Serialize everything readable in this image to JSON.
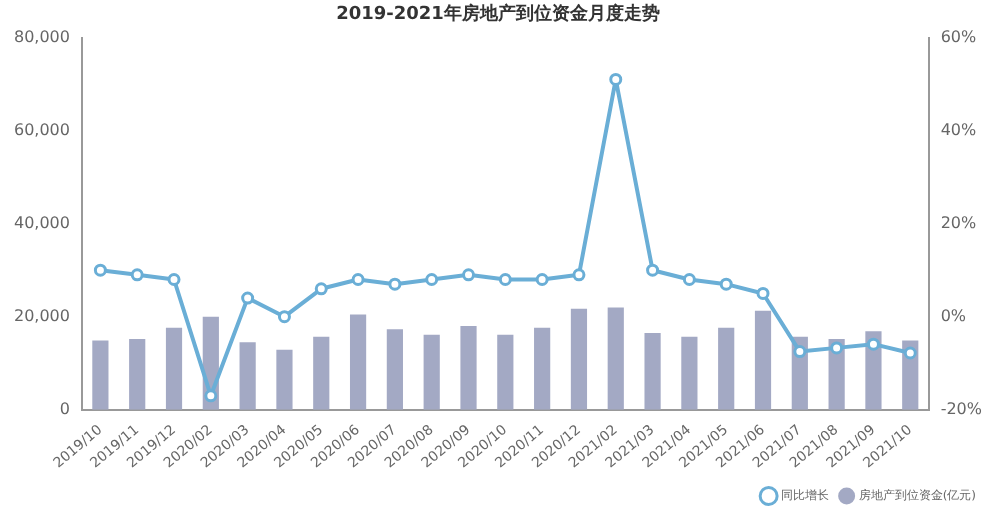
{
  "chart_data": {
    "type": "bar",
    "title": "2019-2021年房地产到位资金月度走势",
    "categories": [
      "2019/10",
      "2019/11",
      "2019/12",
      "2020/02",
      "2020/03",
      "2020/04",
      "2020/05",
      "2020/06",
      "2020/07",
      "2020/08",
      "2020/09",
      "2020/10",
      "2020/11",
      "2020/12",
      "2021/02",
      "2021/03",
      "2021/04",
      "2021/05",
      "2021/06",
      "2021/07",
      "2021/08",
      "2021/09",
      "2021/10"
    ],
    "series": [
      {
        "name": "同比增长",
        "type": "line",
        "axis": "y2",
        "color": "#6aaed6",
        "values": [
          10,
          9,
          8,
          -17,
          4,
          0,
          6,
          8,
          7,
          8,
          9,
          8,
          8,
          9,
          51,
          10,
          8,
          7,
          5,
          -7.5,
          -6.7,
          -5.9,
          -7.8
        ]
      },
      {
        "name": "房地产到位资金(亿元)",
        "color": "#a3a9c4",
        "values": [
          14900,
          15200,
          17600,
          20000,
          14500,
          12900,
          15700,
          20500,
          17300,
          16100,
          18000,
          16100,
          17600,
          21700,
          22000,
          16500,
          15700,
          17600,
          21300,
          15700,
          15200,
          16900,
          14900
        ]
      }
    ],
    "ylim": [
      0,
      80000
    ],
    "yticks": [
      {
        "value": 0,
        "label": "0"
      },
      {
        "value": 20000,
        "label": "20,000"
      },
      {
        "value": 40000,
        "label": "40,000"
      },
      {
        "value": 60000,
        "label": "60,000"
      },
      {
        "value": 80000,
        "label": "80,000"
      }
    ],
    "y2lim": [
      -20,
      60
    ],
    "y2ticks": [
      {
        "value": -20,
        "label": "-20%"
      },
      {
        "value": 0,
        "label": "0%"
      },
      {
        "value": 20,
        "label": "20%"
      },
      {
        "value": 40,
        "label": "40%"
      },
      {
        "value": 60,
        "label": "60%"
      }
    ],
    "grid": false,
    "legend": "bottom right",
    "marker": "circle"
  }
}
